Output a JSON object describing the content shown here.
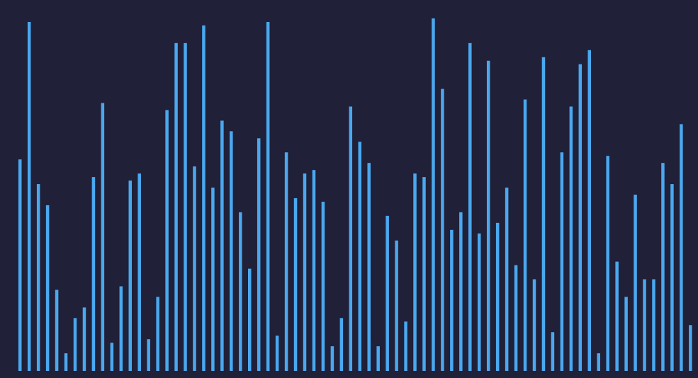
{
  "chart_data": {
    "type": "bar",
    "title": "",
    "xlabel": "",
    "ylabel": "",
    "ylim": [
      0,
      1
    ],
    "grid": false,
    "legend": "none",
    "bar_color": "#4aa8ef",
    "background": "#202038",
    "values": [
      0.6,
      0.99,
      0.53,
      0.47,
      0.23,
      0.05,
      0.15,
      0.18,
      0.55,
      0.76,
      0.08,
      0.24,
      0.54,
      0.56,
      0.09,
      0.21,
      0.74,
      0.93,
      0.93,
      0.58,
      0.98,
      0.52,
      0.71,
      0.68,
      0.45,
      0.29,
      0.66,
      0.99,
      0.1,
      0.62,
      0.49,
      0.56,
      0.57,
      0.48,
      0.07,
      0.15,
      0.75,
      0.65,
      0.59,
      0.07,
      0.44,
      0.37,
      0.14,
      0.56,
      0.55,
      1.0,
      0.8,
      0.4,
      0.45,
      0.93,
      0.39,
      0.88,
      0.42,
      0.52,
      0.3,
      0.77,
      0.26,
      0.89,
      0.11,
      0.62,
      0.75,
      0.87,
      0.91,
      0.05,
      0.61,
      0.31,
      0.21,
      0.5,
      0.26,
      0.26,
      0.59,
      0.53,
      0.7,
      0.13
    ]
  }
}
